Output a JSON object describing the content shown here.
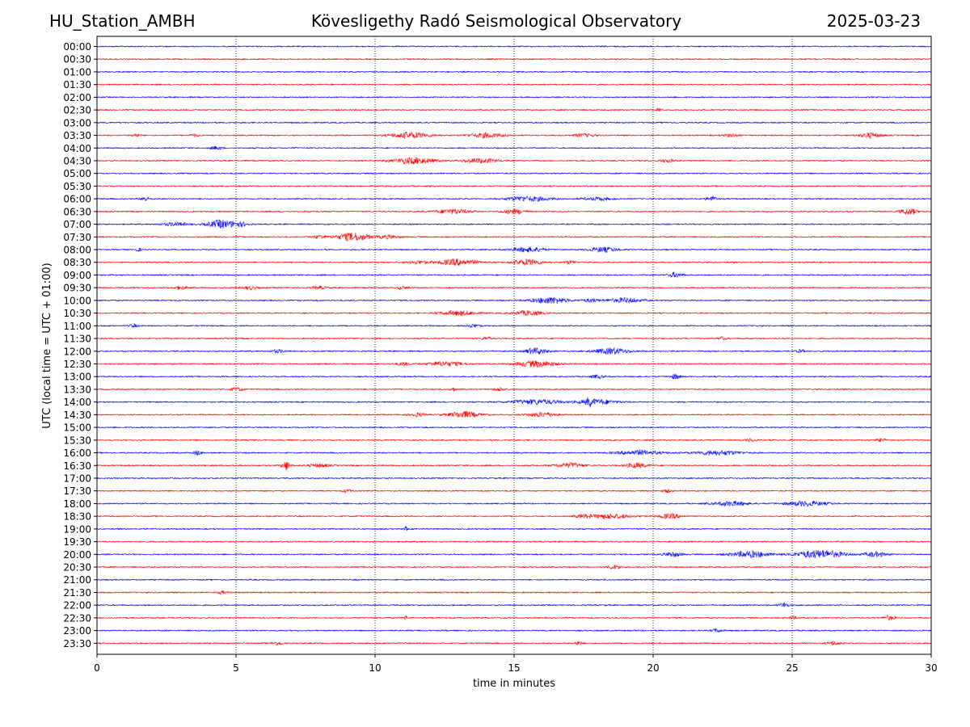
{
  "header": {
    "station": "HU_Station_AMBH",
    "observatory": "Kövesligethy Radó Seismological Observatory",
    "date": "2025-03-23"
  },
  "chart_data": {
    "type": "line",
    "title": "Kövesligethy Radó Seismological Observatory",
    "xlabel": "time in minutes",
    "ylabel": "UTC (local time = UTC + 01:00)",
    "xlim": [
      0,
      30
    ],
    "x_ticks": [
      0,
      5,
      10,
      15,
      20,
      25,
      30
    ],
    "x_gridlines": [
      5,
      10,
      15,
      20,
      25
    ],
    "grid": "vertical dotted",
    "row_labels": [
      "00:00",
      "00:30",
      "01:00",
      "01:30",
      "02:00",
      "02:30",
      "03:00",
      "03:30",
      "04:00",
      "04:30",
      "05:00",
      "05:30",
      "06:00",
      "06:30",
      "07:00",
      "07:30",
      "08:00",
      "08:30",
      "09:00",
      "09:30",
      "10:00",
      "10:30",
      "11:00",
      "11:30",
      "12:00",
      "12:30",
      "13:00",
      "13:30",
      "14:00",
      "14:30",
      "15:00",
      "15:30",
      "16:00",
      "16:30",
      "17:00",
      "17:30",
      "18:00",
      "18:30",
      "19:00",
      "19:30",
      "20:00",
      "20:30",
      "21:00",
      "21:30",
      "22:00",
      "22:30",
      "23:00",
      "23:30"
    ],
    "row_colors": [
      "#0000ff",
      "#ff0000"
    ],
    "bursts": [
      [],
      [],
      [],
      [],
      [],
      [
        [
          20.2,
          0.15,
          3
        ]
      ],
      [],
      [
        [
          1.4,
          0.3,
          2
        ],
        [
          3.5,
          0.3,
          2
        ],
        [
          11.3,
          1.4,
          4
        ],
        [
          14.0,
          1.2,
          3
        ],
        [
          17.5,
          0.8,
          2
        ],
        [
          22.8,
          0.5,
          2
        ],
        [
          27.8,
          0.8,
          3
        ]
      ],
      [
        [
          4.3,
          0.4,
          2
        ]
      ],
      [
        [
          11.4,
          1.5,
          4
        ],
        [
          13.8,
          1.2,
          3
        ],
        [
          20.5,
          0.5,
          2
        ]
      ],
      [],
      [],
      [
        [
          1.7,
          0.3,
          3
        ],
        [
          15.5,
          1.6,
          3
        ],
        [
          18.0,
          1.0,
          2
        ],
        [
          22.1,
          0.4,
          3
        ]
      ],
      [
        [
          12.8,
          1.2,
          3
        ],
        [
          15.0,
          0.8,
          3
        ],
        [
          29.2,
          0.6,
          4
        ]
      ],
      [
        [
          2.8,
          1.0,
          2
        ],
        [
          4.5,
          1.0,
          5
        ],
        [
          5.2,
          0.5,
          2
        ]
      ],
      [
        [
          8.0,
          0.5,
          2
        ],
        [
          9.2,
          1.2,
          5
        ],
        [
          10.5,
          0.8,
          2
        ]
      ],
      [
        [
          1.5,
          0.2,
          2
        ],
        [
          15.5,
          1.2,
          3
        ],
        [
          18.2,
          1.0,
          3
        ]
      ],
      [
        [
          11.5,
          0.8,
          2
        ],
        [
          13.0,
          1.4,
          4
        ],
        [
          15.5,
          1.0,
          4
        ],
        [
          17.0,
          0.4,
          2
        ]
      ],
      [
        [
          20.8,
          0.5,
          3
        ]
      ],
      [
        [
          3.0,
          0.5,
          2
        ],
        [
          5.5,
          0.6,
          2
        ],
        [
          8.0,
          0.5,
          2
        ],
        [
          11.0,
          0.4,
          2
        ]
      ],
      [
        [
          16.3,
          1.3,
          4
        ],
        [
          19.0,
          1.2,
          3
        ],
        [
          17.8,
          0.6,
          2
        ]
      ],
      [
        [
          13.0,
          1.2,
          3
        ],
        [
          15.5,
          1.0,
          3
        ]
      ],
      [
        [
          1.3,
          0.3,
          2
        ],
        [
          13.5,
          0.5,
          2
        ]
      ],
      [
        [
          14.0,
          0.3,
          2
        ],
        [
          22.5,
          0.3,
          2
        ]
      ],
      [
        [
          6.5,
          0.5,
          2
        ],
        [
          15.8,
          0.8,
          4
        ],
        [
          18.5,
          1.2,
          4
        ],
        [
          25.3,
          0.3,
          2
        ]
      ],
      [
        [
          12.5,
          1.3,
          3
        ],
        [
          15.8,
          1.4,
          4
        ],
        [
          11.0,
          0.5,
          2
        ]
      ],
      [
        [
          20.8,
          0.4,
          3
        ],
        [
          18.0,
          0.5,
          2
        ]
      ],
      [
        [
          5.0,
          0.5,
          2
        ],
        [
          12.8,
          0.2,
          2
        ],
        [
          14.5,
          0.4,
          2
        ]
      ],
      [
        [
          15.8,
          1.8,
          3
        ],
        [
          18.0,
          1.4,
          3
        ],
        [
          17.7,
          0.2,
          4
        ]
      ],
      [
        [
          11.5,
          0.6,
          2
        ],
        [
          13.2,
          1.1,
          4
        ],
        [
          16.0,
          1.0,
          3
        ]
      ],
      [],
      [
        [
          23.5,
          0.3,
          2
        ],
        [
          28.2,
          0.3,
          2
        ]
      ],
      [
        [
          3.6,
          0.3,
          3
        ],
        [
          19.5,
          1.5,
          3
        ],
        [
          22.3,
          1.6,
          3
        ]
      ],
      [
        [
          6.8,
          0.3,
          6
        ],
        [
          8.0,
          0.8,
          2
        ],
        [
          17.0,
          1.0,
          3
        ],
        [
          19.4,
          0.8,
          3
        ]
      ],
      [],
      [
        [
          9.0,
          0.3,
          2
        ],
        [
          20.5,
          0.3,
          2
        ]
      ],
      [
        [
          22.8,
          1.2,
          3
        ],
        [
          25.5,
          1.5,
          3
        ]
      ],
      [
        [
          18.5,
          1.4,
          3
        ],
        [
          20.6,
          0.8,
          3
        ],
        [
          17.5,
          0.6,
          2
        ]
      ],
      [
        [
          11.1,
          0.1,
          3
        ]
      ],
      [],
      [
        [
          20.7,
          0.6,
          3
        ],
        [
          23.5,
          1.4,
          4
        ],
        [
          26.0,
          1.8,
          5
        ],
        [
          28.0,
          0.8,
          3
        ]
      ],
      [
        [
          18.6,
          0.4,
          3
        ]
      ],
      [],
      [
        [
          4.5,
          0.3,
          2
        ]
      ],
      [
        [
          24.7,
          0.3,
          3
        ]
      ],
      [
        [
          11.1,
          0.1,
          3
        ],
        [
          25.0,
          0.3,
          2
        ],
        [
          28.5,
          0.4,
          3
        ]
      ],
      [
        [
          22.3,
          0.4,
          2
        ]
      ],
      [
        [
          6.5,
          0.4,
          2
        ],
        [
          17.3,
          0.3,
          2
        ],
        [
          26.5,
          0.5,
          2
        ]
      ]
    ]
  }
}
